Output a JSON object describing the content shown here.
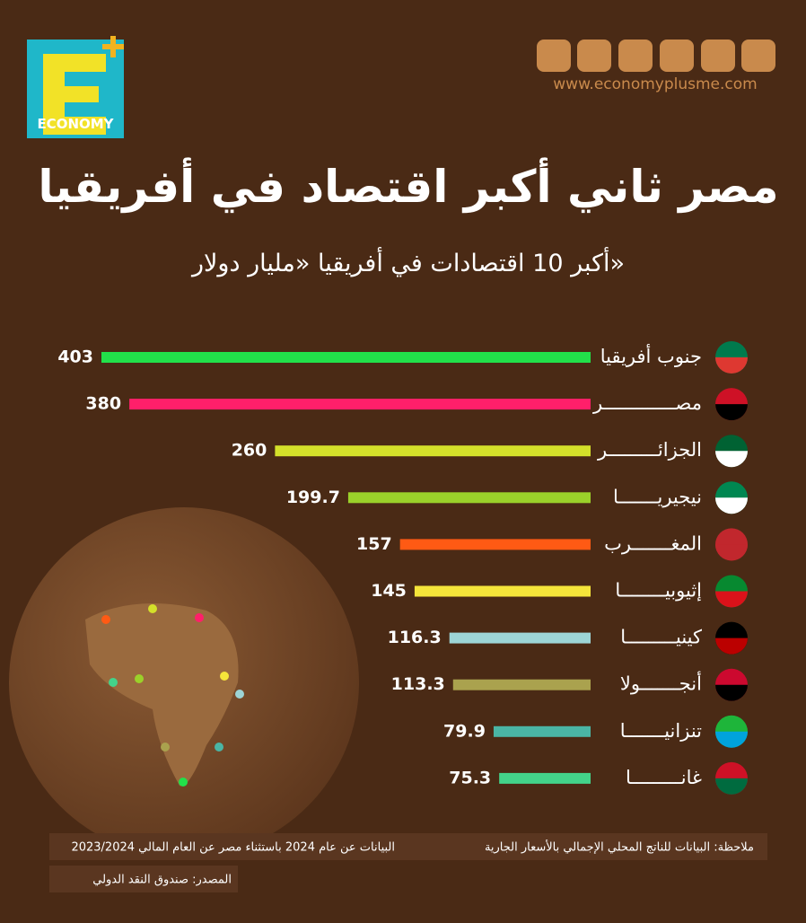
{
  "brand": "ECONOMY",
  "website": "www.economyplusme.com",
  "chart_data": {
    "type": "bar",
    "title": "مصر ثاني أكبر اقتصاد في أفريقيا",
    "subtitle": "أكبر 10 اقتصادات في أفريقيا «مليار دولار»",
    "categories": [
      "جنوب أفريقيا",
      "مصـــــــــــــر",
      "الجزائـــــــــر",
      "نيجيريـــــــا",
      "المغـــــــرب",
      "إثيوبيــــــــا",
      "كينيـــــــــا",
      "أنجـــــــولا",
      "تنزانيـــــــا",
      "غانـــــــــا"
    ],
    "values": [
      403,
      380,
      260,
      199.7,
      157,
      145,
      116.3,
      113.3,
      79.9,
      75.3
    ],
    "colors": [
      "#22e04a",
      "#ff1f6a",
      "#d4e02a",
      "#9bd12a",
      "#ff5a14",
      "#f5e53a",
      "#9dd5d6",
      "#aaa24e",
      "#4ab5a5",
      "#43d38a"
    ]
  },
  "note": "ملاحظة: البيانات للناتج المحلي الإجمالي بالأسعار الجارية",
  "note2": "البيانات عن عام 2024 باستثناء مصر عن العام المالي 2023/2024",
  "source": "المصدر: صندوق النقد الدولي"
}
